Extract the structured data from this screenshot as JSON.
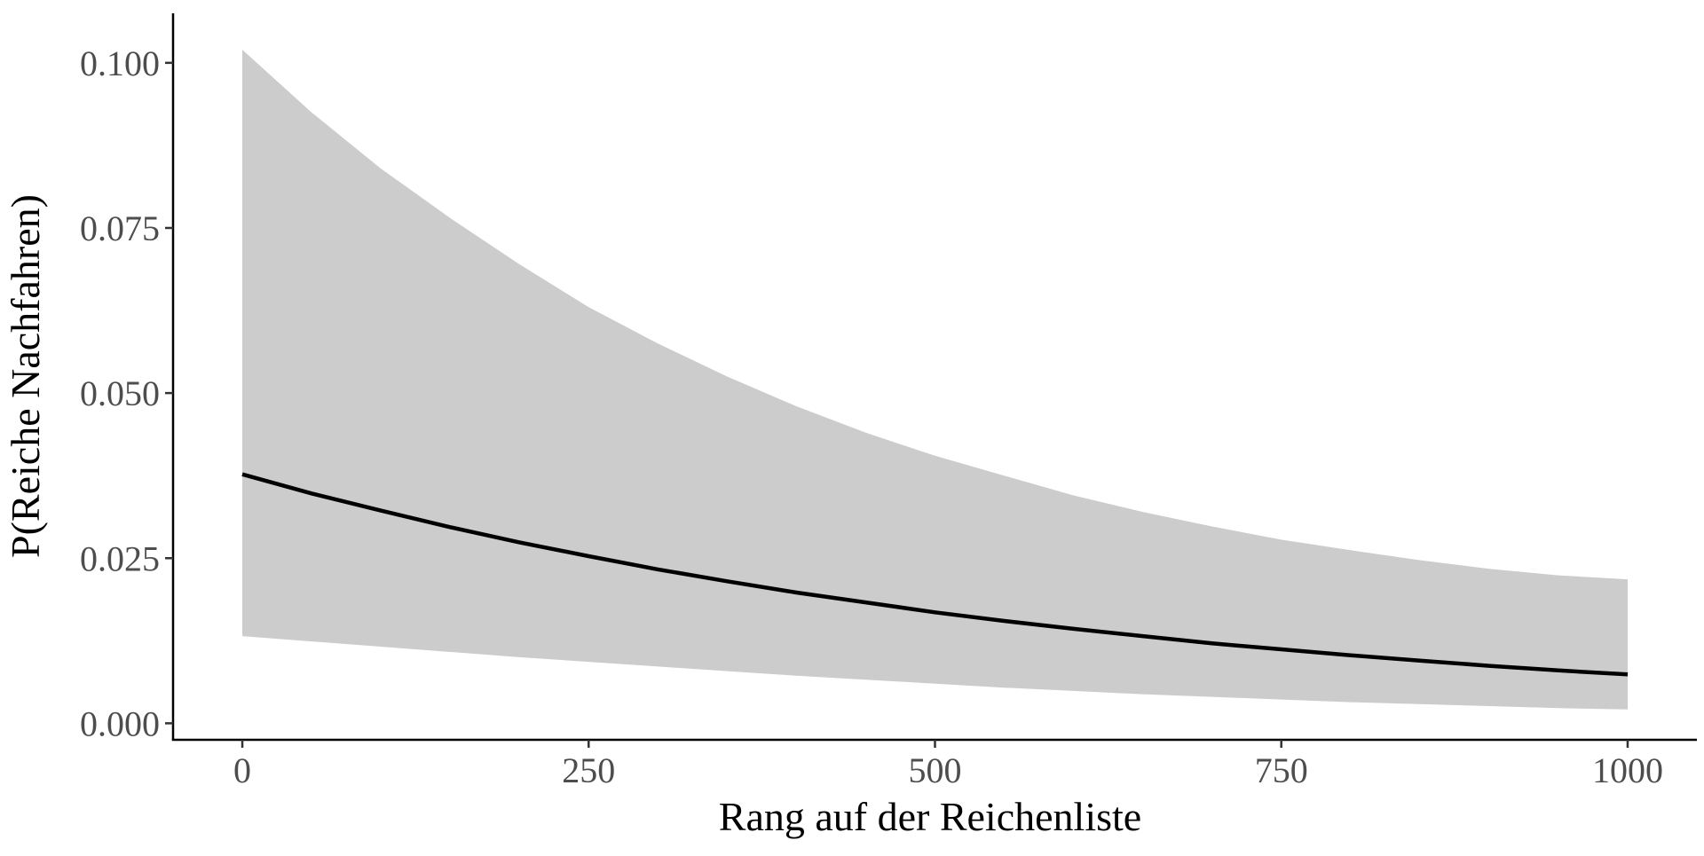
{
  "chart_data": {
    "type": "line",
    "title": "",
    "xlabel": "Rang auf der Reichenliste",
    "ylabel": "P(Reiche Nachfahren)",
    "xlim": [
      -50,
      1050
    ],
    "ylim": [
      -0.0025,
      0.1075
    ],
    "grid": false,
    "legend": "none",
    "x_ticks": [
      {
        "value": 0,
        "label": "0"
      },
      {
        "value": 250,
        "label": "250"
      },
      {
        "value": 500,
        "label": "500"
      },
      {
        "value": 750,
        "label": "750"
      },
      {
        "value": 1000,
        "label": "1000"
      }
    ],
    "y_ticks": [
      {
        "value": 0.0,
        "label": "0.000"
      },
      {
        "value": 0.025,
        "label": "0.025"
      },
      {
        "value": 0.05,
        "label": "0.050"
      },
      {
        "value": 0.075,
        "label": "0.075"
      },
      {
        "value": 0.1,
        "label": "0.100"
      }
    ],
    "x": [
      0,
      50,
      100,
      150,
      200,
      250,
      300,
      350,
      400,
      450,
      500,
      550,
      600,
      650,
      700,
      750,
      800,
      850,
      900,
      950,
      1000
    ],
    "series": [
      {
        "values": [
          0.0377,
          0.0348,
          0.0322,
          0.0297,
          0.0274,
          0.0253,
          0.0233,
          0.0215,
          0.0198,
          0.0183,
          0.0168,
          0.0155,
          0.0143,
          0.0132,
          0.0121,
          0.0112,
          0.0103,
          0.0095,
          0.0087,
          0.008,
          0.0074
        ],
        "lower": [
          0.0132,
          0.0124,
          0.0116,
          0.0108,
          0.01,
          0.0093,
          0.0086,
          0.0079,
          0.0072,
          0.0066,
          0.006,
          0.0054,
          0.0049,
          0.0044,
          0.004,
          0.0036,
          0.0032,
          0.0029,
          0.0026,
          0.0023,
          0.0021
        ],
        "upper": [
          0.102,
          0.0925,
          0.084,
          0.0765,
          0.0695,
          0.063,
          0.0575,
          0.0525,
          0.048,
          0.044,
          0.0405,
          0.0375,
          0.0345,
          0.032,
          0.0298,
          0.0278,
          0.0262,
          0.0247,
          0.0234,
          0.0224,
          0.0218
        ]
      }
    ],
    "colors": {
      "line": "#000000",
      "ribbon": "#cccccc",
      "axis": "#000000",
      "tick_label": "#4d4d4d"
    }
  }
}
